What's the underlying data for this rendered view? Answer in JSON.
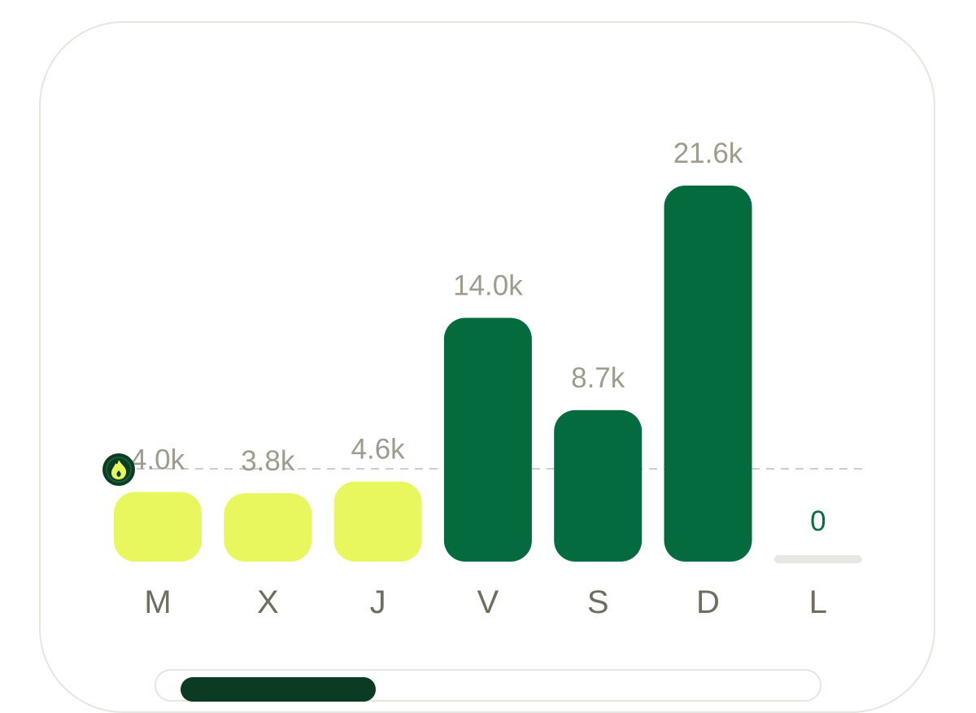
{
  "chart_data": {
    "type": "bar",
    "categories": [
      "M",
      "X",
      "J",
      "V",
      "S",
      "D",
      "L"
    ],
    "values": [
      4000,
      3800,
      4600,
      14000,
      8700,
      21600,
      0
    ],
    "value_labels": [
      "4.0k",
      "3.8k",
      "4.6k",
      "14.0k",
      "8.7k",
      "21.6k",
      "0"
    ],
    "goal_value": 5100,
    "ylim": [
      0,
      21600
    ],
    "grid": false,
    "below_goal_color": "#e9f75f",
    "above_goal_color": "#036b3d",
    "empty_bar_color": "#e7e7e4",
    "goal_line_color": "#cfcfca",
    "goal_marker_icon": "flame-icon",
    "goal_marker_bg": "#0a3d22",
    "goal_marker_fg": "#e9f75f"
  }
}
